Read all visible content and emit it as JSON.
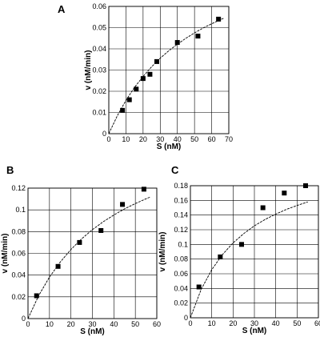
{
  "chart_data": [
    {
      "panel": "A",
      "type": "scatter",
      "xlabel": "S (nM)",
      "ylabel": "v (nM/min)",
      "xlim": [
        0,
        70
      ],
      "ylim": [
        0,
        0.06
      ],
      "xticks": [
        0,
        10,
        20,
        30,
        40,
        50,
        60,
        70
      ],
      "yticks": [
        0,
        0.01,
        0.02,
        0.03,
        0.04,
        0.05,
        0.06
      ],
      "grid": true,
      "points": {
        "x": [
          8,
          12,
          16,
          20,
          24,
          28,
          40,
          52,
          64
        ],
        "y": [
          0.011,
          0.016,
          0.021,
          0.026,
          0.028,
          0.034,
          0.043,
          0.046,
          0.054
        ]
      },
      "fit_curve": {
        "x": [
          0,
          5,
          10,
          15,
          20,
          25,
          30,
          35,
          40,
          45,
          50,
          55,
          60,
          65,
          67
        ],
        "y": [
          0,
          0.0085,
          0.0157,
          0.0218,
          0.027,
          0.0316,
          0.0356,
          0.0391,
          0.0422,
          0.045,
          0.0475,
          0.0498,
          0.0518,
          0.0537,
          0.0544
        ]
      }
    },
    {
      "panel": "B",
      "type": "scatter",
      "xlabel": "S (nM)",
      "ylabel": "v (nM/min)",
      "xlim": [
        0,
        60
      ],
      "ylim": [
        0,
        0.12
      ],
      "xticks": [
        0,
        10,
        20,
        30,
        40,
        50,
        60
      ],
      "yticks": [
        0,
        0.02,
        0.04,
        0.06,
        0.08,
        0.1,
        0.12
      ],
      "grid": true,
      "points": {
        "x": [
          4,
          14,
          24,
          34,
          44,
          54
        ],
        "y": [
          0.021,
          0.048,
          0.07,
          0.081,
          0.105,
          0.119
        ]
      },
      "fit_curve": {
        "x": [
          0,
          5,
          10,
          15,
          20,
          25,
          30,
          35,
          40,
          45,
          50,
          55,
          57
        ],
        "y": [
          0,
          0.0212,
          0.0381,
          0.052,
          0.0636,
          0.0734,
          0.0818,
          0.089,
          0.0953,
          0.1009,
          0.1058,
          0.1102,
          0.1118
        ]
      }
    },
    {
      "panel": "C",
      "type": "scatter",
      "xlabel": "S (nM)",
      "ylabel": "v (nM/min)",
      "xlim": [
        0,
        60
      ],
      "ylim": [
        0,
        0.18
      ],
      "xticks": [
        0,
        10,
        20,
        30,
        40,
        50,
        60
      ],
      "yticks": [
        0,
        0.02,
        0.04,
        0.06,
        0.08,
        0.1,
        0.12,
        0.14,
        0.16,
        0.18
      ],
      "grid": true,
      "points": {
        "x": [
          4,
          14,
          24,
          34,
          44,
          54
        ],
        "y": [
          0.042,
          0.083,
          0.1,
          0.15,
          0.17,
          0.18
        ]
      },
      "fit_curve": {
        "x": [
          0,
          5,
          10,
          15,
          20,
          25,
          30,
          35,
          40,
          45,
          50,
          55
        ],
        "y": [
          0,
          0.0383,
          0.0656,
          0.0861,
          0.102,
          0.1148,
          0.1253,
          0.134,
          0.1413,
          0.1477,
          0.1531,
          0.1579
        ]
      }
    }
  ]
}
